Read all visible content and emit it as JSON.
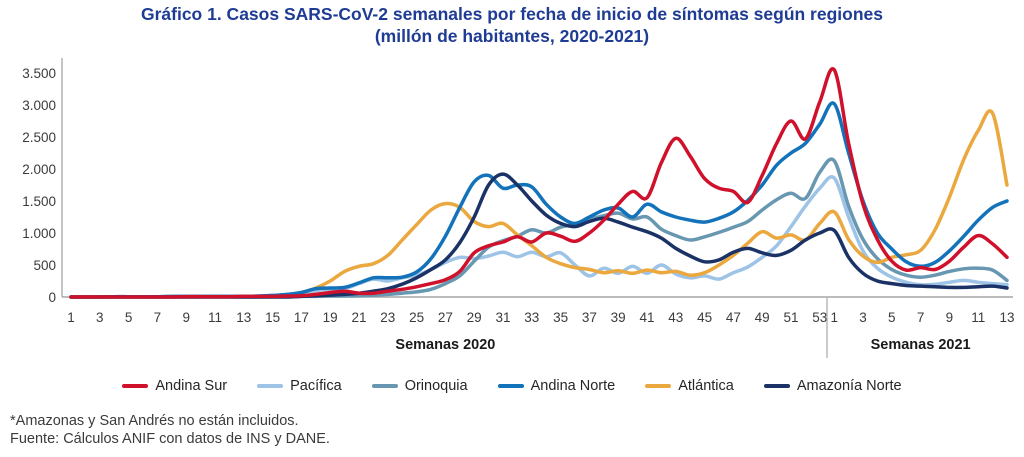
{
  "title": {
    "line1": "Gráfico 1. Casos SARS-CoV-2 semanales por fecha de inicio de síntomas según regiones",
    "line2": "(millón de habitantes, 2020-2021)"
  },
  "notes": {
    "line1": "*Amazonas y San Andrés no están incluidos.",
    "line2": "Fuente: Cálculos ANIF con datos de INS y DANE."
  },
  "chart_data": {
    "type": "line",
    "title": "Gráfico 1. Casos SARS-CoV-2 semanales por fecha de inicio de síntomas según regiones (millón de habitantes, 2020-2021)",
    "ylabel": "",
    "ylim": [
      0,
      3500
    ],
    "grid": false,
    "legend_position": "bottom",
    "axis_color": "#A6A6A6",
    "tick_text_color": "#3B3B3B",
    "group_label_color": "#1A1A1A",
    "x_axis": {
      "group_2020": {
        "label": "Semanas 2020",
        "tick_labels": [
          "1",
          "3",
          "5",
          "7",
          "9",
          "11",
          "13",
          "15",
          "17",
          "19",
          "21",
          "23",
          "25",
          "27",
          "29",
          "31",
          "33",
          "35",
          "37",
          "39",
          "41",
          "43",
          "45",
          "47",
          "49",
          "51",
          "53"
        ]
      },
      "group_2021": {
        "label": "Semanas 2021",
        "tick_labels": [
          "1",
          "3",
          "5",
          "7",
          "9",
          "11",
          "13"
        ]
      }
    },
    "y_axis": {
      "ticks": [
        {
          "v": 0,
          "label": "0"
        },
        {
          "v": 500,
          "label": "500"
        },
        {
          "v": 1000,
          "label": "1.000"
        },
        {
          "v": 1500,
          "label": "1.500"
        },
        {
          "v": 2000,
          "label": "2.000"
        },
        {
          "v": 2500,
          "label": "2.500"
        },
        {
          "v": 3000,
          "label": "3.000"
        },
        {
          "v": 3500,
          "label": "3.500"
        }
      ]
    },
    "draw_order": [
      1,
      2,
      4,
      3,
      5,
      0
    ],
    "series": [
      {
        "name": "Andina Sur",
        "color": "#D0112B",
        "values": [
          0,
          0,
          0,
          0,
          0,
          0,
          0,
          0,
          5,
          5,
          5,
          5,
          10,
          10,
          10,
          15,
          20,
          40,
          70,
          90,
          60,
          60,
          90,
          120,
          160,
          210,
          270,
          400,
          690,
          800,
          860,
          940,
          860,
          1000,
          950,
          870,
          1000,
          1200,
          1450,
          1650,
          1550,
          2100,
          2480,
          2200,
          1850,
          1700,
          1650,
          1480,
          1900,
          2400,
          2750,
          2470,
          3050,
          3550,
          2400,
          1450,
          900,
          560,
          420,
          460,
          430,
          560,
          780,
          960,
          830,
          620
        ]
      },
      {
        "name": "Pacífica",
        "color": "#9DC3E6",
        "values": [
          0,
          0,
          0,
          0,
          0,
          0,
          5,
          5,
          5,
          5,
          10,
          10,
          10,
          10,
          15,
          25,
          45,
          100,
          120,
          130,
          210,
          280,
          250,
          300,
          340,
          430,
          540,
          620,
          600,
          640,
          700,
          630,
          700,
          630,
          690,
          500,
          330,
          450,
          370,
          480,
          370,
          500,
          360,
          300,
          330,
          280,
          380,
          470,
          620,
          800,
          1100,
          1420,
          1700,
          1860,
          1250,
          720,
          450,
          310,
          230,
          190,
          200,
          230,
          260,
          230,
          210,
          190
        ]
      },
      {
        "name": "Orinoquia",
        "color": "#6897B2",
        "values": [
          0,
          0,
          0,
          0,
          0,
          0,
          0,
          0,
          0,
          0,
          0,
          0,
          0,
          0,
          5,
          5,
          10,
          10,
          15,
          15,
          20,
          30,
          40,
          60,
          80,
          120,
          210,
          330,
          560,
          780,
          880,
          950,
          1050,
          1000,
          1090,
          1140,
          1210,
          1270,
          1310,
          1220,
          1250,
          1060,
          960,
          890,
          940,
          1010,
          1090,
          1180,
          1360,
          1520,
          1620,
          1540,
          1950,
          2130,
          1420,
          900,
          600,
          430,
          340,
          310,
          340,
          400,
          440,
          450,
          420,
          260
        ]
      },
      {
        "name": "Andina Norte",
        "color": "#1272BA",
        "values": [
          0,
          0,
          0,
          5,
          5,
          5,
          5,
          10,
          10,
          10,
          10,
          10,
          10,
          15,
          25,
          40,
          70,
          130,
          140,
          150,
          220,
          300,
          300,
          310,
          390,
          600,
          950,
          1400,
          1800,
          1900,
          1700,
          1750,
          1720,
          1450,
          1250,
          1150,
          1250,
          1360,
          1390,
          1250,
          1450,
          1330,
          1250,
          1200,
          1170,
          1230,
          1330,
          1510,
          1750,
          2060,
          2250,
          2400,
          2700,
          3020,
          2250,
          1500,
          1000,
          750,
          550,
          480,
          540,
          720,
          950,
          1200,
          1400,
          1500
        ]
      },
      {
        "name": "Atlántica",
        "color": "#EAA83E",
        "values": [
          5,
          5,
          5,
          5,
          5,
          5,
          5,
          5,
          10,
          10,
          10,
          10,
          10,
          10,
          15,
          30,
          70,
          140,
          250,
          400,
          480,
          520,
          650,
          890,
          1130,
          1360,
          1460,
          1400,
          1180,
          1100,
          1150,
          970,
          800,
          620,
          520,
          460,
          430,
          380,
          410,
          370,
          420,
          380,
          400,
          340,
          380,
          500,
          650,
          840,
          1020,
          920,
          970,
          890,
          1150,
          1330,
          900,
          640,
          540,
          620,
          660,
          730,
          1050,
          1560,
          2150,
          2600,
          2870,
          1750
        ]
      },
      {
        "name": "Amazonía Norte",
        "color": "#1A3266",
        "values": [
          0,
          0,
          0,
          0,
          0,
          0,
          0,
          0,
          0,
          0,
          0,
          0,
          0,
          0,
          0,
          0,
          10,
          20,
          30,
          40,
          60,
          90,
          130,
          200,
          300,
          430,
          580,
          850,
          1250,
          1750,
          1920,
          1750,
          1500,
          1280,
          1150,
          1100,
          1180,
          1230,
          1170,
          1090,
          1020,
          920,
          760,
          640,
          550,
          580,
          700,
          760,
          690,
          650,
          730,
          890,
          1000,
          1040,
          620,
          370,
          250,
          210,
          180,
          170,
          160,
          150,
          150,
          160,
          170,
          140
        ]
      }
    ]
  }
}
